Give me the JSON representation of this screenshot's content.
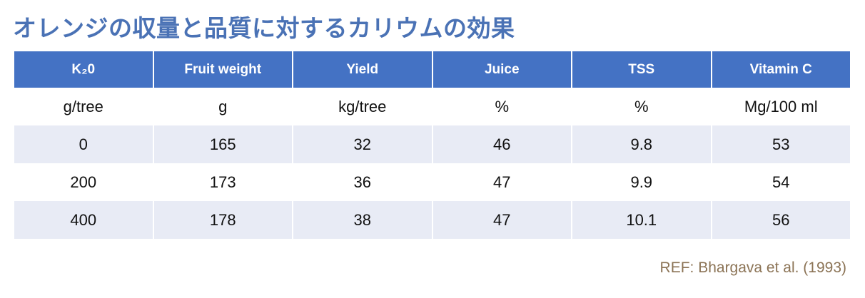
{
  "header": {
    "title": "オレンジの収量と品質に対するカリウムの効果"
  },
  "table": {
    "columns": [
      "K₂0",
      "Fruit weight",
      "Yield",
      "Juice",
      "TSS",
      "Vitamin C"
    ],
    "units": [
      "g/tree",
      "g",
      "kg/tree",
      "%",
      "%",
      "Mg/100 ml"
    ],
    "rows": [
      [
        0,
        165,
        32,
        46,
        9.8,
        53
      ],
      [
        200,
        173,
        36,
        47,
        9.9,
        54
      ],
      [
        400,
        178,
        38,
        47,
        10.1,
        56
      ]
    ]
  },
  "footer": {
    "reference": "REF: Bhargava et al. (1993)"
  }
}
